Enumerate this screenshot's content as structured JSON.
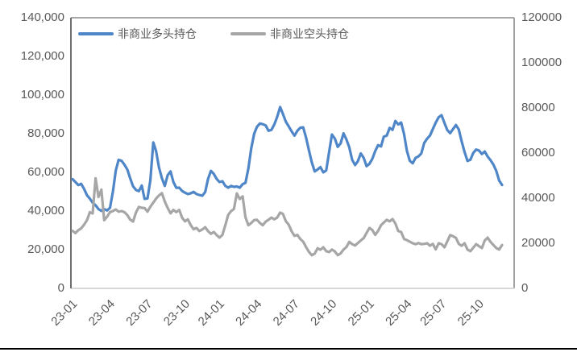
{
  "chart_data": {
    "type": "line",
    "title": "",
    "legend_position": "top-left-inside",
    "grid": false,
    "left_axis": {
      "min": 0,
      "max": 140000,
      "tick_step": 20000,
      "labels_top_to_bottom": [
        "140,000",
        "120,000",
        "100,000",
        "80,000",
        "60,000",
        "40,000",
        "20,000",
        "0"
      ]
    },
    "right_axis": {
      "min": 0,
      "max": 120000,
      "tick_step": 20000,
      "labels_top_to_bottom": [
        "120000",
        "100000",
        "80000",
        "60000",
        "40000",
        "20000",
        "0"
      ]
    },
    "x_ticks": [
      {
        "label": "23-01",
        "index": 1
      },
      {
        "label": "23-04",
        "index": 14
      },
      {
        "label": "23-07",
        "index": 27
      },
      {
        "label": "23-10",
        "index": 40
      },
      {
        "label": "24-01",
        "index": 52
      },
      {
        "label": "24-04",
        "index": 65
      },
      {
        "label": "24-07",
        "index": 78
      },
      {
        "label": "24-10",
        "index": 91
      },
      {
        "label": "25-01",
        "index": 104
      },
      {
        "label": "25-04",
        "index": 117
      },
      {
        "label": "25-07",
        "index": 129
      },
      {
        "label": "25-10",
        "index": 142
      }
    ],
    "series": [
      {
        "name": "非商业多头持仓",
        "axis": "left",
        "color": "#4E86C8",
        "values": [
          56500,
          55000,
          53400,
          54100,
          51500,
          48200,
          46400,
          44300,
          43000,
          41000,
          40100,
          41000,
          40300,
          41700,
          50000,
          61000,
          66500,
          66000,
          64000,
          61500,
          57000,
          52800,
          50900,
          50300,
          53200,
          46300,
          46500,
          56000,
          75500,
          71000,
          62500,
          57000,
          53000,
          58500,
          60500,
          55000,
          52000,
          52100,
          50400,
          49500,
          48800,
          49200,
          49900,
          48800,
          48300,
          47900,
          49800,
          56500,
          60800,
          59200,
          56600,
          55000,
          55400,
          53000,
          52100,
          53000,
          52500,
          52700,
          52100,
          53900,
          54600,
          62000,
          72500,
          80000,
          83600,
          85300,
          84900,
          84300,
          81500,
          82000,
          84800,
          88800,
          93800,
          90200,
          86200,
          83800,
          81200,
          79000,
          81500,
          83100,
          83300,
          78000,
          71500,
          65200,
          60500,
          61500,
          62700,
          60000,
          61000,
          70500,
          79600,
          77500,
          73200,
          75000,
          80200,
          77100,
          73000,
          66500,
          63800,
          65800,
          69800,
          67500,
          63200,
          64400,
          67000,
          71000,
          74100,
          73400,
          78500,
          79000,
          83000,
          82000,
          86600,
          84800,
          85800,
          79800,
          71000,
          66000,
          64700,
          67500,
          68300,
          69800,
          75200,
          77400,
          79100,
          82400,
          85700,
          88500,
          89600,
          85600,
          81900,
          80300,
          82400,
          84500,
          82200,
          76000,
          70500,
          65900,
          66500,
          70000,
          71800,
          71300,
          69500,
          70800,
          68200,
          66300,
          64000,
          60800,
          55800,
          53500
        ]
      },
      {
        "name": "非商业空头持仓",
        "axis": "right",
        "color": "#A6A6A6",
        "values": [
          25500,
          24500,
          25800,
          26600,
          28200,
          30200,
          33800,
          33200,
          48800,
          40500,
          43800,
          30200,
          31800,
          33800,
          34300,
          35000,
          34000,
          34300,
          33800,
          32500,
          30500,
          29600,
          33600,
          36100,
          35700,
          35600,
          34000,
          36200,
          38000,
          39800,
          41200,
          42200,
          38500,
          35700,
          33300,
          34800,
          33800,
          34800,
          31400,
          29700,
          30600,
          28000,
          26200,
          26800,
          25400,
          26100,
          27100,
          25400,
          24200,
          25000,
          23600,
          22500,
          23700,
          28000,
          32600,
          34200,
          35200,
          42100,
          39600,
          40800,
          31500,
          28000,
          29000,
          30300,
          30400,
          29000,
          28000,
          29600,
          30400,
          31400,
          30600,
          31400,
          33600,
          33000,
          29800,
          28200,
          25300,
          23300,
          23700,
          21900,
          20700,
          18300,
          16200,
          14700,
          15400,
          17800,
          17100,
          18200,
          16500,
          16100,
          17200,
          16400,
          14700,
          15500,
          17200,
          18300,
          20600,
          19600,
          19000,
          20100,
          21200,
          22300,
          24600,
          26800,
          25900,
          23700,
          25500,
          28000,
          29200,
          30400,
          29700,
          30700,
          28800,
          25400,
          25000,
          21900,
          21400,
          20700,
          20000,
          19600,
          20100,
          19600,
          19700,
          20000,
          18900,
          19700,
          17300,
          20000,
          19600,
          18200,
          20800,
          23600,
          23100,
          22400,
          19700,
          18900,
          20000,
          17200,
          16500,
          18000,
          19600,
          18700,
          17900,
          21200,
          22500,
          20600,
          19200,
          17900,
          17200,
          19200
        ]
      }
    ]
  }
}
